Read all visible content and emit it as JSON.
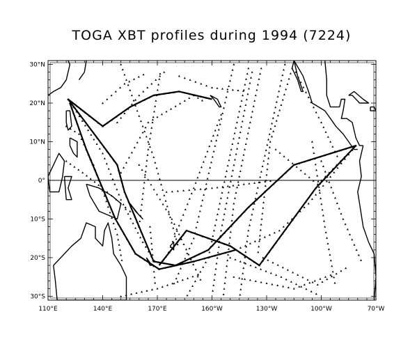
{
  "title": "TOGA XBT profiles during 1994 (7224)",
  "map": {
    "projection": "equirectangular",
    "lon_range": [
      110,
      290
    ],
    "lat_range": [
      -31,
      31
    ],
    "line_color": "#000000",
    "background": "#ffffff",
    "observation_marker": "triangle",
    "x_ticks": [
      {
        "lon": 110,
        "label": "110°E"
      },
      {
        "lon": 140,
        "label": "140°E"
      },
      {
        "lon": 170,
        "label": "170°E"
      },
      {
        "lon": 200,
        "label": "160°W"
      },
      {
        "lon": 230,
        "label": "130°W"
      },
      {
        "lon": 260,
        "label": "100°W"
      },
      {
        "lon": 290,
        "label": "70°W"
      }
    ],
    "y_ticks": [
      {
        "lat": 30,
        "label": "30°N"
      },
      {
        "lat": 20,
        "label": "20°N"
      },
      {
        "lat": 10,
        "label": "10°N"
      },
      {
        "lat": 0,
        "label": "0°"
      },
      {
        "lat": -10,
        "label": "10°S"
      },
      {
        "lat": -20,
        "label": "20°S"
      },
      {
        "lat": -30,
        "label": "30°S"
      }
    ],
    "equator_line": true
  },
  "ship_tracks": [
    {
      "points": [
        [
          121,
          21
        ],
        [
          140,
          14
        ],
        [
          155,
          19
        ],
        [
          168,
          22
        ],
        [
          182,
          23
        ],
        [
          200,
          21
        ]
      ]
    },
    {
      "points": [
        [
          121,
          21
        ],
        [
          137,
          11
        ],
        [
          148,
          4
        ],
        [
          152,
          -3
        ],
        [
          160,
          -12
        ],
        [
          168,
          -21
        ],
        [
          180,
          -22
        ],
        [
          198,
          -18
        ],
        [
          220,
          -7
        ],
        [
          245,
          4
        ],
        [
          279,
          9
        ]
      ]
    },
    {
      "points": [
        [
          124,
          19
        ],
        [
          140,
          7
        ],
        [
          150,
          -5
        ],
        [
          162,
          -16
        ],
        [
          170,
          -22
        ]
      ]
    },
    {
      "points": [
        [
          122,
          20
        ],
        [
          131,
          8
        ],
        [
          147,
          -10
        ],
        [
          158,
          -19
        ],
        [
          171,
          -23
        ],
        [
          190,
          -21
        ],
        [
          213,
          -18
        ]
      ]
    },
    {
      "points": [
        [
          120,
          14
        ],
        [
          127,
          12
        ],
        [
          135,
          4
        ],
        [
          141,
          -4
        ],
        [
          148,
          -14
        ],
        [
          151,
          -22
        ]
      ]
    },
    {
      "points": [
        [
          279,
          9
        ],
        [
          257,
          -2
        ],
        [
          226,
          -22
        ],
        [
          210,
          -17
        ],
        [
          186,
          -13
        ],
        [
          171,
          -22
        ]
      ]
    },
    {
      "points": [
        [
          279,
          9
        ],
        [
          253,
          -6
        ],
        [
          237,
          -13
        ],
        [
          213,
          -18
        ]
      ]
    },
    {
      "points": [
        [
          150,
          2
        ],
        [
          165,
          15
        ],
        [
          190,
          22
        ],
        [
          197,
          20
        ]
      ]
    },
    {
      "points": [
        [
          148,
          15
        ],
        [
          160,
          22
        ],
        [
          176,
          29
        ]
      ]
    },
    {
      "points": [
        [
          160,
          4
        ],
        [
          178,
          -10
        ],
        [
          195,
          -27
        ]
      ]
    },
    {
      "points": [
        [
          212,
          30
        ],
        [
          190,
          -15
        ],
        [
          178,
          -28
        ]
      ]
    },
    {
      "points": [
        [
          220,
          29
        ],
        [
          198,
          -20
        ],
        [
          185,
          -31
        ]
      ]
    },
    {
      "points": [
        [
          222,
          28
        ],
        [
          205,
          -13
        ],
        [
          200,
          -30
        ]
      ]
    },
    {
      "points": [
        [
          227,
          29
        ],
        [
          212,
          -6
        ],
        [
          206,
          -31
        ]
      ]
    },
    {
      "points": [
        [
          240,
          30
        ],
        [
          220,
          -13
        ],
        [
          215,
          -31
        ]
      ]
    },
    {
      "points": [
        [
          244,
          29
        ],
        [
          232,
          10
        ],
        [
          225,
          -20
        ]
      ]
    },
    {
      "points": [
        [
          246,
          28
        ],
        [
          260,
          15
        ],
        [
          270,
          5
        ]
      ]
    },
    {
      "points": [
        [
          150,
          30
        ],
        [
          168,
          6
        ],
        [
          182,
          -18
        ]
      ]
    },
    {
      "points": [
        [
          160,
          -12
        ],
        [
          165,
          8
        ],
        [
          172,
          29
        ]
      ]
    },
    {
      "points": [
        [
          205,
          17
        ],
        [
          190,
          -2
        ],
        [
          175,
          -20
        ]
      ]
    },
    {
      "points": [
        [
          166,
          -12
        ],
        [
          169,
          -28
        ]
      ]
    },
    {
      "points": [
        [
          228,
          -20
        ],
        [
          258,
          -27
        ],
        [
          276,
          -22
        ]
      ]
    },
    {
      "points": [
        [
          212,
          -25
        ],
        [
          245,
          -28
        ],
        [
          268,
          -24
        ]
      ]
    },
    {
      "points": [
        [
          120,
          5
        ],
        [
          129,
          2
        ],
        [
          140,
          -2
        ],
        [
          150,
          -6
        ],
        [
          160,
          -10
        ]
      ]
    },
    {
      "points": [
        [
          150,
          -30
        ],
        [
          170,
          -28
        ],
        [
          195,
          -24
        ]
      ]
    },
    {
      "points": [
        [
          260,
          5
        ],
        [
          272,
          -10
        ],
        [
          283,
          -22
        ]
      ]
    },
    {
      "points": [
        [
          255,
          10
        ],
        [
          262,
          -12
        ],
        [
          268,
          -28
        ]
      ]
    },
    {
      "points": [
        [
          210,
          -20
        ],
        [
          238,
          -25
        ],
        [
          260,
          -30
        ]
      ]
    },
    {
      "points": [
        [
          235,
          8
        ],
        [
          258,
          -1
        ],
        [
          279,
          9
        ]
      ]
    },
    {
      "points": [
        [
          140,
          20
        ],
        [
          152,
          25
        ],
        [
          165,
          28
        ]
      ]
    },
    {
      "points": [
        [
          182,
          27
        ],
        [
          200,
          24
        ],
        [
          220,
          23
        ]
      ]
    },
    {
      "points": [
        [
          175,
          -3
        ],
        [
          200,
          -2
        ],
        [
          235,
          0
        ]
      ]
    }
  ],
  "heavy_tracks": [
    {
      "points": [
        [
          121,
          21
        ],
        [
          140,
          14
        ],
        [
          155,
          19
        ],
        [
          168,
          22
        ],
        [
          182,
          23
        ],
        [
          200,
          21
        ]
      ]
    },
    {
      "points": [
        [
          121,
          21
        ],
        [
          137,
          11
        ],
        [
          148,
          4
        ],
        [
          152,
          -3
        ],
        [
          160,
          -12
        ],
        [
          168,
          -21
        ],
        [
          180,
          -22
        ],
        [
          198,
          -18
        ],
        [
          220,
          -7
        ],
        [
          245,
          4
        ],
        [
          279,
          9
        ]
      ]
    },
    {
      "points": [
        [
          279,
          9
        ],
        [
          257,
          -2
        ],
        [
          226,
          -22
        ],
        [
          210,
          -17
        ],
        [
          186,
          -13
        ],
        [
          171,
          -22
        ]
      ]
    },
    {
      "points": [
        [
          122,
          20
        ],
        [
          131,
          8
        ],
        [
          147,
          -10
        ],
        [
          158,
          -19
        ],
        [
          171,
          -23
        ],
        [
          190,
          -21
        ],
        [
          213,
          -18
        ]
      ]
    }
  ],
  "coastlines": [
    {
      "name": "asia-mainland",
      "points": [
        [
          110,
          22
        ],
        [
          113,
          23
        ],
        [
          117,
          24
        ],
        [
          120,
          26
        ],
        [
          122,
          30
        ],
        [
          121,
          31
        ]
      ]
    },
    {
      "name": "vietnam",
      "points": [
        [
          110,
          20
        ],
        [
          108,
          16
        ],
        [
          109,
          12
        ],
        [
          106,
          10
        ],
        [
          110,
          10
        ]
      ]
    },
    {
      "name": "philippines-luzon",
      "points": [
        [
          120,
          18
        ],
        [
          122,
          18
        ],
        [
          123,
          14
        ],
        [
          121,
          13
        ],
        [
          120,
          15
        ],
        [
          120,
          18
        ]
      ]
    },
    {
      "name": "philippines-south",
      "points": [
        [
          122,
          11
        ],
        [
          126,
          10
        ],
        [
          126,
          6
        ],
        [
          124,
          7
        ],
        [
          122,
          9
        ],
        [
          122,
          11
        ]
      ]
    },
    {
      "name": "borneo",
      "points": [
        [
          110,
          1
        ],
        [
          116,
          7
        ],
        [
          119,
          5
        ],
        [
          118,
          1
        ],
        [
          116,
          -3
        ],
        [
          111,
          -3
        ],
        [
          110,
          1
        ]
      ]
    },
    {
      "name": "sulawesi",
      "points": [
        [
          119,
          1
        ],
        [
          123,
          1
        ],
        [
          121,
          -2
        ],
        [
          123,
          -5
        ],
        [
          120,
          -5
        ],
        [
          119,
          1
        ]
      ]
    },
    {
      "name": "new-guinea",
      "points": [
        [
          131,
          -1
        ],
        [
          138,
          -2
        ],
        [
          145,
          -4
        ],
        [
          150,
          -6
        ],
        [
          148,
          -10
        ],
        [
          143,
          -9
        ],
        [
          138,
          -8
        ],
        [
          133,
          -4
        ],
        [
          131,
          -1
        ]
      ]
    },
    {
      "name": "australia",
      "points": [
        [
          113,
          -22
        ],
        [
          114,
          -26
        ],
        [
          115,
          -31
        ],
        [
          118,
          -31
        ],
        [
          125,
          -31
        ],
        [
          135,
          -31
        ],
        [
          153,
          -31
        ],
        [
          153,
          -25
        ],
        [
          150,
          -22
        ],
        [
          146,
          -19
        ],
        [
          145,
          -15
        ],
        [
          143,
          -11
        ],
        [
          141,
          -13
        ],
        [
          140,
          -17
        ],
        [
          136,
          -15
        ],
        [
          136,
          -12
        ],
        [
          131,
          -11
        ],
        [
          128,
          -15
        ],
        [
          123,
          -17
        ],
        [
          117,
          -20
        ],
        [
          113,
          -22
        ]
      ]
    },
    {
      "name": "new-caledonia",
      "points": [
        [
          164,
          -20
        ],
        [
          167,
          -22
        ],
        [
          166,
          -22
        ],
        [
          164,
          -20
        ]
      ]
    },
    {
      "name": "fiji",
      "points": [
        [
          177,
          -17
        ],
        [
          179,
          -16
        ],
        [
          179,
          -18
        ],
        [
          177,
          -17
        ]
      ]
    },
    {
      "name": "solomons",
      "points": [
        [
          155,
          -6
        ],
        [
          160,
          -9
        ],
        [
          162,
          -10
        ],
        [
          158,
          -8
        ],
        [
          155,
          -6
        ]
      ]
    },
    {
      "name": "japan-ryukyu",
      "points": [
        [
          127,
          26
        ],
        [
          130,
          28
        ],
        [
          131,
          31
        ]
      ]
    },
    {
      "name": "hawaii",
      "points": [
        [
          199,
          22
        ],
        [
          203,
          21
        ],
        [
          205,
          19
        ],
        [
          204,
          19
        ],
        [
          201,
          21
        ],
        [
          199,
          22
        ]
      ]
    },
    {
      "name": "mexico-central-america",
      "points": [
        [
          245,
          31
        ],
        [
          250,
          27
        ],
        [
          253,
          23
        ],
        [
          255,
          20
        ],
        [
          262,
          18
        ],
        [
          265,
          16
        ],
        [
          268,
          14
        ],
        [
          272,
          12
        ],
        [
          275,
          10
        ],
        [
          278,
          8
        ],
        [
          280,
          8
        ]
      ]
    },
    {
      "name": "mexico-gulf",
      "points": [
        [
          262,
          31
        ],
        [
          263,
          26
        ],
        [
          263,
          22
        ],
        [
          265,
          19
        ],
        [
          270,
          19
        ],
        [
          271,
          21
        ],
        [
          273,
          21
        ],
        [
          272,
          18
        ],
        [
          271,
          16
        ],
        [
          274,
          16
        ],
        [
          277,
          15
        ],
        [
          279,
          11
        ],
        [
          281,
          9
        ],
        [
          283,
          9
        ]
      ]
    },
    {
      "name": "cuba",
      "points": [
        [
          275,
          22
        ],
        [
          278,
          23
        ],
        [
          283,
          21
        ],
        [
          286,
          20
        ],
        [
          281,
          20
        ],
        [
          277,
          22
        ],
        [
          275,
          22
        ]
      ]
    },
    {
      "name": "hispaniola",
      "points": [
        [
          287,
          19
        ],
        [
          289,
          19
        ],
        [
          290,
          18
        ],
        [
          287,
          18
        ],
        [
          287,
          19
        ]
      ]
    },
    {
      "name": "south-america",
      "points": [
        [
          283,
          9
        ],
        [
          281,
          5
        ],
        [
          282,
          1
        ],
        [
          280,
          -3
        ],
        [
          281,
          -6
        ],
        [
          283,
          -12
        ],
        [
          286,
          -16
        ],
        [
          289,
          -19
        ],
        [
          290,
          -25
        ],
        [
          289,
          -31
        ]
      ]
    },
    {
      "name": "baja",
      "points": [
        [
          245,
          31
        ],
        [
          247,
          27
        ],
        [
          250,
          23
        ],
        [
          249,
          23
        ],
        [
          247,
          26
        ],
        [
          244,
          29
        ],
        [
          245,
          31
        ]
      ]
    }
  ]
}
